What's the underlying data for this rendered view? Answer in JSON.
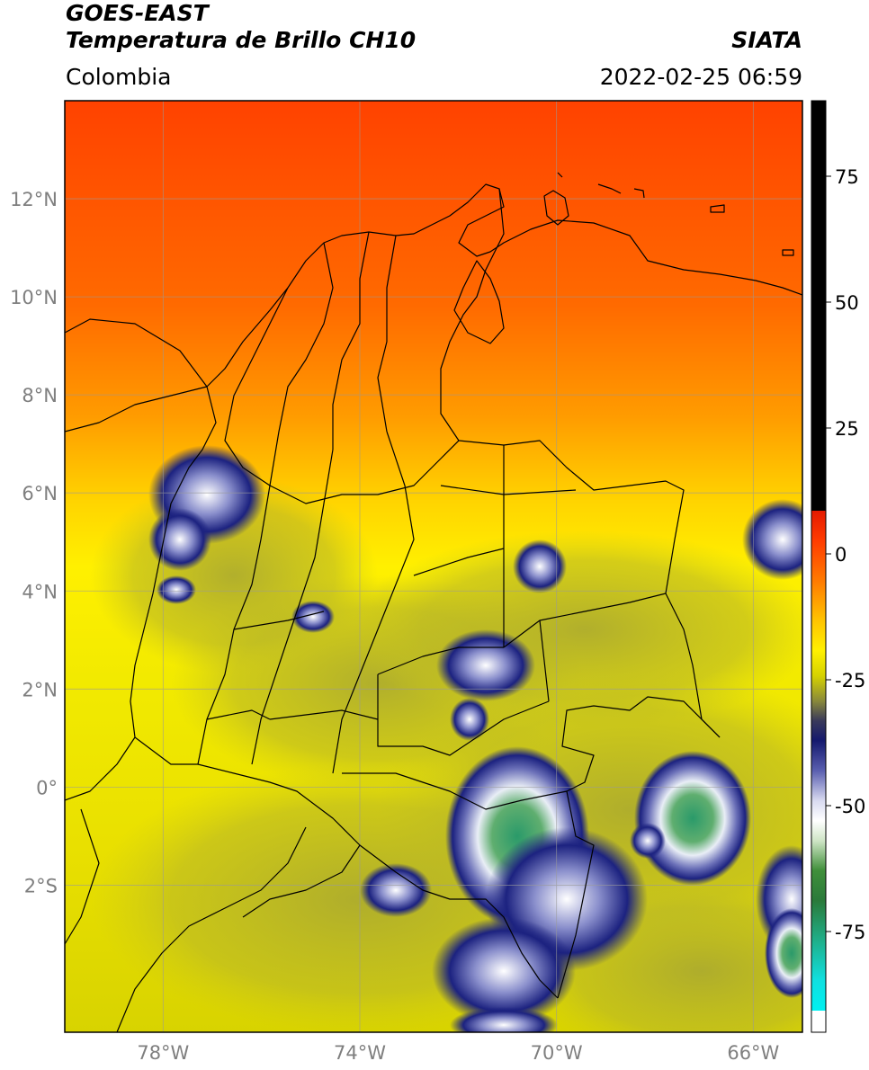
{
  "header": {
    "satellite": "GOES-EAST",
    "product": "Temperatura de Brillo CH10",
    "organization": "SIATA",
    "region": "Colombia",
    "timestamp": "2022-02-25 06:59"
  },
  "map": {
    "lon_range": [
      -80,
      -65
    ],
    "lat_range": [
      -5,
      14
    ],
    "lat_ticks": [
      {
        "value": 12,
        "label": "12°N"
      },
      {
        "value": 10,
        "label": "10°N"
      },
      {
        "value": 8,
        "label": "8°N"
      },
      {
        "value": 6,
        "label": "6°N"
      },
      {
        "value": 4,
        "label": "4°N"
      },
      {
        "value": 2,
        "label": "2°N"
      },
      {
        "value": 0,
        "label": "0°"
      },
      {
        "value": -2,
        "label": "2°S"
      }
    ],
    "lon_ticks": [
      {
        "value": -78,
        "label": "78°W"
      },
      {
        "value": -74,
        "label": "74°W"
      },
      {
        "value": -70,
        "label": "70°W"
      },
      {
        "value": -66,
        "label": "66°W"
      }
    ],
    "grid": true,
    "colors": {
      "north": "#ff4a00",
      "mid": "#ffb400",
      "warm_yellow": "#fff200",
      "olive": "#c2c21a",
      "cold_navy": "#1a1f7a",
      "cold_white": "#f2f2ff",
      "cold_green": "#2e8b57",
      "border": "#000000"
    }
  },
  "colorbar": {
    "ticks": [
      {
        "value": 75,
        "label": "75"
      },
      {
        "value": 50,
        "label": "50"
      },
      {
        "value": 25,
        "label": "25"
      },
      {
        "value": 0,
        "label": "0"
      },
      {
        "value": -25,
        "label": "-25"
      },
      {
        "value": -50,
        "label": "-50"
      },
      {
        "value": -75,
        "label": "-75"
      }
    ],
    "range": [
      -95,
      90
    ]
  }
}
